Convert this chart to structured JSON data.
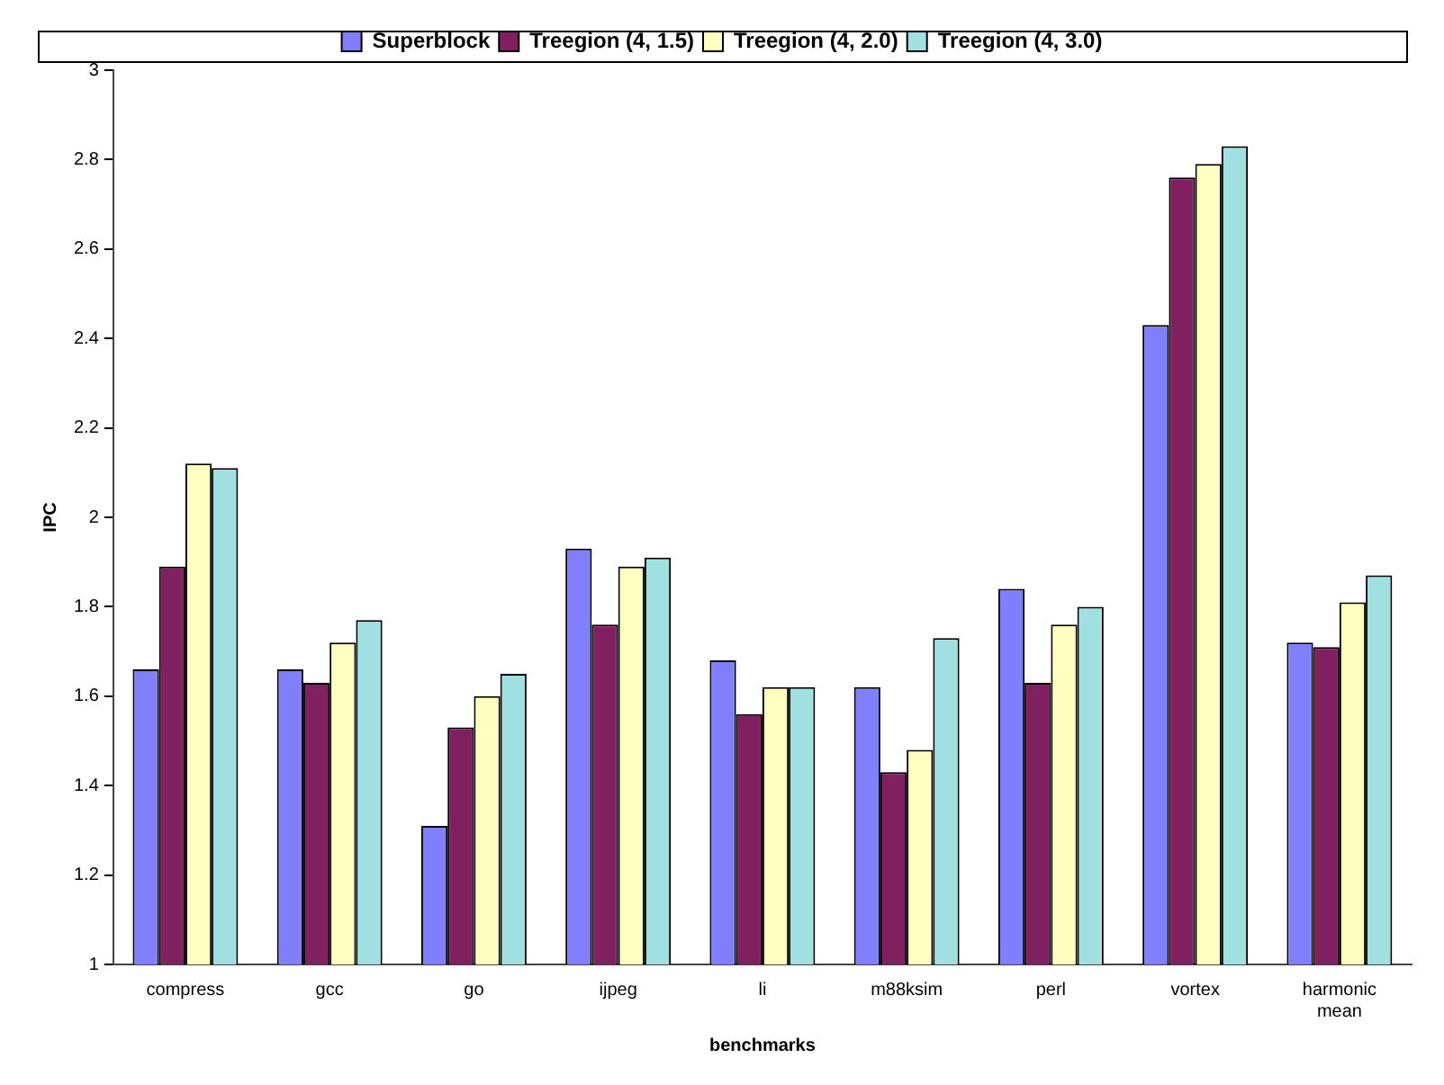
{
  "chart_data": {
    "type": "bar",
    "xlabel": "benchmarks",
    "ylabel": "IPC",
    "categories": [
      "compress",
      "gcc",
      "go",
      "ijpeg",
      "li",
      "m88ksim",
      "perl",
      "vortex",
      "harmonic mean"
    ],
    "series": [
      {
        "name": "Superblock",
        "color": "#8080ff",
        "values": [
          1.66,
          1.66,
          1.31,
          1.93,
          1.68,
          1.62,
          1.84,
          2.43,
          1.72
        ]
      },
      {
        "name": "Treegion (4, 1.5)",
        "color": "#802060",
        "values": [
          1.89,
          1.63,
          1.53,
          1.76,
          1.56,
          1.43,
          1.63,
          2.76,
          1.71
        ]
      },
      {
        "name": "Treegion (4, 2.0)",
        "color": "#ffffc0",
        "values": [
          2.12,
          1.72,
          1.6,
          1.89,
          1.62,
          1.48,
          1.76,
          2.79,
          1.81
        ]
      },
      {
        "name": "Treegion (4, 3.0)",
        "color": "#a0e0e0",
        "values": [
          2.11,
          1.77,
          1.65,
          1.91,
          1.62,
          1.73,
          1.8,
          2.83,
          1.87
        ]
      }
    ],
    "ylim": [
      1,
      3
    ],
    "yticks": [
      1,
      1.2,
      1.4,
      1.6,
      1.8,
      2,
      2.2,
      2.4,
      2.6,
      2.8,
      3
    ],
    "legend": "top"
  }
}
